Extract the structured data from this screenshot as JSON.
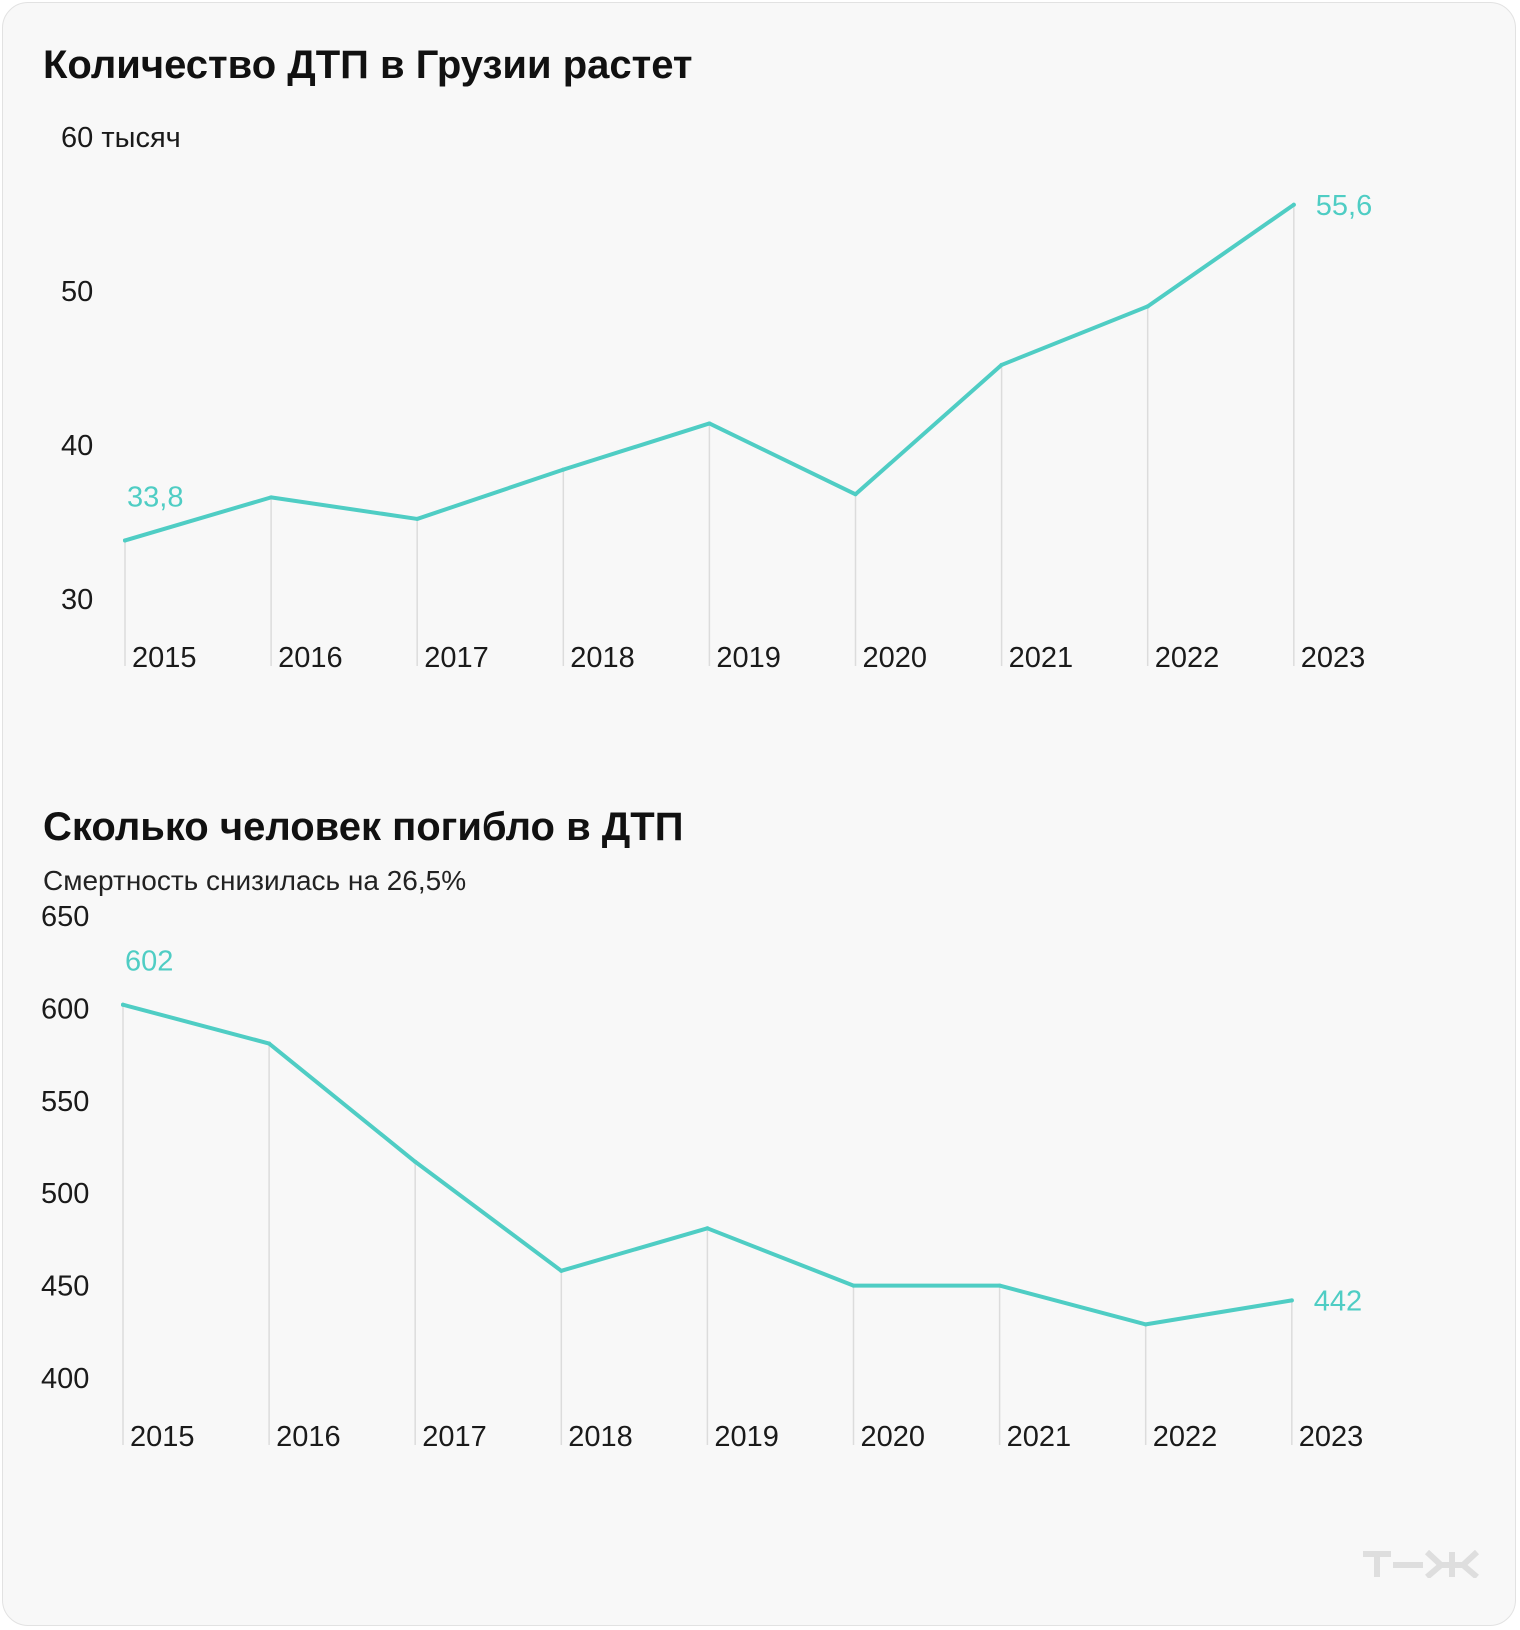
{
  "chart_data": [
    {
      "type": "line",
      "title": "Количество ДТП в Грузии растет",
      "subtitle": "",
      "ylabel": "60 тысяч",
      "x": [
        "2015",
        "2016",
        "2017",
        "2018",
        "2019",
        "2020",
        "2021",
        "2022",
        "2023"
      ],
      "series": [
        {
          "values": [
            33.8,
            36.6,
            35.2,
            38.4,
            41.4,
            36.8,
            45.2,
            49.0,
            55.6
          ]
        }
      ],
      "ylim": [
        30,
        60
      ],
      "yticks": [
        {
          "value": 30,
          "label": "30"
        },
        {
          "value": 40,
          "label": "40"
        },
        {
          "value": 50,
          "label": "50"
        }
      ],
      "data_labels": [
        {
          "index": 0,
          "text": "33,8"
        },
        {
          "index": 8,
          "text": "55,6"
        }
      ],
      "grid": "vertical lines at each year",
      "color": "#4fcdc4"
    },
    {
      "type": "line",
      "title": "Сколько человек погибло в ДТП",
      "subtitle": "Смертность снизилась на 26,5%",
      "x": [
        "2015",
        "2016",
        "2017",
        "2018",
        "2019",
        "2020",
        "2021",
        "2022",
        "2023"
      ],
      "series": [
        {
          "values": [
            602,
            581,
            517,
            458,
            481,
            450,
            450,
            429,
            442
          ]
        }
      ],
      "ylim": [
        400,
        650
      ],
      "yticks": [
        {
          "value": 400,
          "label": "400"
        },
        {
          "value": 450,
          "label": "450"
        },
        {
          "value": 500,
          "label": "500"
        },
        {
          "value": 550,
          "label": "550"
        },
        {
          "value": 600,
          "label": "600"
        },
        {
          "value": 650,
          "label": "650"
        }
      ],
      "data_labels": [
        {
          "index": 0,
          "text": "602"
        },
        {
          "index": 8,
          "text": "442"
        }
      ],
      "grid": "vertical lines at each year",
      "color": "#4fcdc4"
    }
  ],
  "colors": {
    "line": "#4fcdc4",
    "grid": "#dcdcdc",
    "text": "#111111",
    "logo": "#dedede"
  },
  "logo": {
    "icon": "tzh-logo-icon"
  }
}
